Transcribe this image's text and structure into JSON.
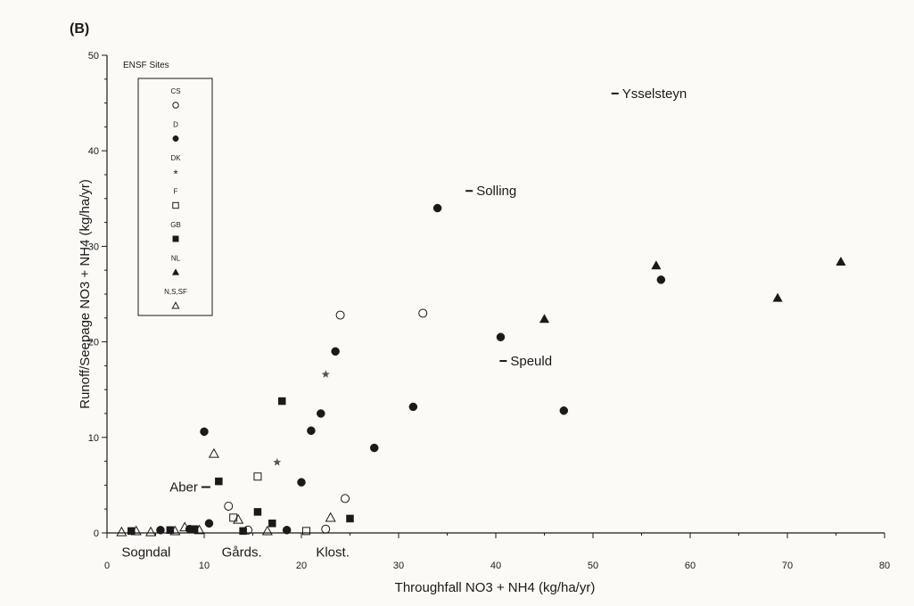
{
  "chart_data": {
    "type": "scatter",
    "panel_label": "(B)",
    "xlabel": "Throughfall NO3 + NH4 (kg/ha/yr)",
    "ylabel": "Runoff/Seepage NO3 + NH4 (kg/ha/yr)",
    "xlim": [
      0,
      80
    ],
    "ylim": [
      0,
      50
    ],
    "xticks": [
      0,
      10,
      20,
      30,
      40,
      50,
      60,
      70,
      80
    ],
    "yticks": [
      0,
      10,
      20,
      30,
      40,
      50
    ],
    "grid": false,
    "legend": {
      "title": "ENSF Sites",
      "placement": "top-left",
      "entries": [
        {
          "label": "CS",
          "marker": "circle-open"
        },
        {
          "label": "D",
          "marker": "circle-filled"
        },
        {
          "label": "DK",
          "marker": "star"
        },
        {
          "label": "F",
          "marker": "square-open"
        },
        {
          "label": "GB",
          "marker": "square-filled"
        },
        {
          "label": "NL",
          "marker": "triangle-filled"
        },
        {
          "label": "N,S,SF",
          "marker": "triangle-open"
        }
      ]
    },
    "series": [
      {
        "name": "CS",
        "marker": "circle-open",
        "points": [
          {
            "x": 12.5,
            "y": 2.8
          },
          {
            "x": 14.5,
            "y": 0.3
          },
          {
            "x": 22.5,
            "y": 0.4
          },
          {
            "x": 24.5,
            "y": 3.6
          },
          {
            "x": 24,
            "y": 22.8
          },
          {
            "x": 32.5,
            "y": 23
          }
        ]
      },
      {
        "name": "D",
        "marker": "circle-filled",
        "points": [
          {
            "x": 5.5,
            "y": 0.3
          },
          {
            "x": 8.5,
            "y": 0.4
          },
          {
            "x": 10,
            "y": 10.6
          },
          {
            "x": 10.5,
            "y": 1
          },
          {
            "x": 18.5,
            "y": 0.3
          },
          {
            "x": 20,
            "y": 5.3
          },
          {
            "x": 21,
            "y": 10.7
          },
          {
            "x": 22,
            "y": 12.5
          },
          {
            "x": 23.5,
            "y": 19
          },
          {
            "x": 27.5,
            "y": 8.9
          },
          {
            "x": 31.5,
            "y": 13.2
          },
          {
            "x": 34,
            "y": 34
          },
          {
            "x": 40.5,
            "y": 20.5
          },
          {
            "x": 47,
            "y": 12.8
          },
          {
            "x": 57,
            "y": 26.5
          }
        ]
      },
      {
        "name": "DK",
        "marker": "star",
        "points": [
          {
            "x": 17.5,
            "y": 7.4
          },
          {
            "x": 22.5,
            "y": 16.6
          }
        ]
      },
      {
        "name": "F",
        "marker": "square-open",
        "points": [
          {
            "x": 13,
            "y": 1.6
          },
          {
            "x": 15.5,
            "y": 5.9
          },
          {
            "x": 20.5,
            "y": 0.2
          }
        ]
      },
      {
        "name": "GB",
        "marker": "square-filled",
        "points": [
          {
            "x": 2.5,
            "y": 0.2
          },
          {
            "x": 6.5,
            "y": 0.3
          },
          {
            "x": 9,
            "y": 0.4
          },
          {
            "x": 11.5,
            "y": 5.4
          },
          {
            "x": 14,
            "y": 0.2
          },
          {
            "x": 15.5,
            "y": 2.2
          },
          {
            "x": 17,
            "y": 1
          },
          {
            "x": 18,
            "y": 13.8
          },
          {
            "x": 25,
            "y": 1.5
          }
        ]
      },
      {
        "name": "NL",
        "marker": "triangle-filled",
        "points": [
          {
            "x": 45,
            "y": 22.4
          },
          {
            "x": 56.5,
            "y": 28
          },
          {
            "x": 69,
            "y": 24.6
          },
          {
            "x": 75.5,
            "y": 28.4
          }
        ]
      },
      {
        "name": "N,S,SF",
        "marker": "triangle-open",
        "points": [
          {
            "x": 1.5,
            "y": 0.1
          },
          {
            "x": 3,
            "y": 0.2
          },
          {
            "x": 4.5,
            "y": 0.1
          },
          {
            "x": 7,
            "y": 0.2
          },
          {
            "x": 8,
            "y": 0.6
          },
          {
            "x": 9.5,
            "y": 0.3
          },
          {
            "x": 11,
            "y": 8.3
          },
          {
            "x": 13.5,
            "y": 1.4
          },
          {
            "x": 16.5,
            "y": 0.2
          },
          {
            "x": 23,
            "y": 1.6
          }
        ]
      }
    ],
    "annotations": [
      {
        "text": "Ysselsteyn",
        "x": 53,
        "y": 46,
        "dash": "left"
      },
      {
        "text": "Solling",
        "x": 38,
        "y": 35.8,
        "dash": "left"
      },
      {
        "text": "Speuld",
        "x": 41.5,
        "y": 18,
        "dash": "left"
      },
      {
        "text": "Aber",
        "x": 11,
        "y": 4.8,
        "dash": "right"
      },
      {
        "text": "Sogndal",
        "x": 1.5,
        "y": -2,
        "dash": "none"
      },
      {
        "text": "Gårds.",
        "x": 11.8,
        "y": -2,
        "dash": "none"
      },
      {
        "text": "Klost.",
        "x": 21.5,
        "y": -2,
        "dash": "none"
      }
    ]
  }
}
